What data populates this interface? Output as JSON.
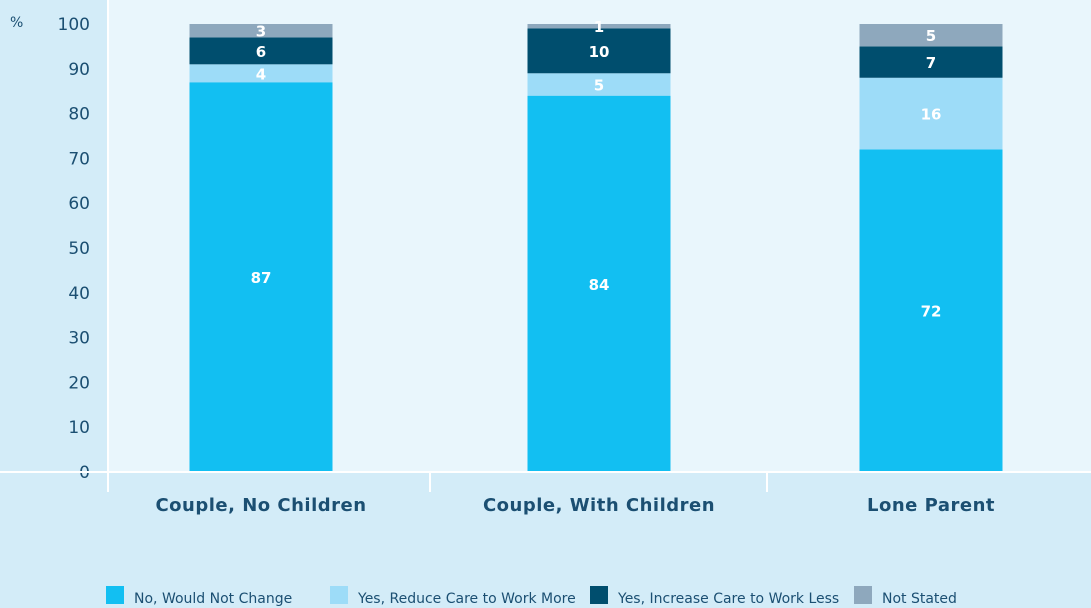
{
  "chart_data": {
    "type": "bar",
    "stacked": true,
    "y_unit": "%",
    "ylim": [
      0,
      100
    ],
    "yticks": [
      0,
      10,
      20,
      30,
      40,
      50,
      60,
      70,
      80,
      90,
      100
    ],
    "categories": [
      "Couple, No Children",
      "Couple, With Children",
      "Lone Parent"
    ],
    "series": [
      {
        "name": "No, Would Not Change",
        "color": "#12bff2",
        "values": [
          87,
          84,
          72
        ]
      },
      {
        "name": "Yes, Reduce Care to Work More",
        "color": "#9ddcf8",
        "values": [
          4,
          5,
          16
        ]
      },
      {
        "name": "Yes, Increase Care to Work Less",
        "color": "#004e6e",
        "values": [
          6,
          10,
          7
        ]
      },
      {
        "name": "Not Stated",
        "color": "#8ea8bd",
        "values": [
          3,
          1,
          5
        ]
      }
    ],
    "grid": false,
    "legend_position": "bottom"
  },
  "colors": {
    "background": "#d3ecf8",
    "plot_area": "#e9f6fc",
    "axis": "#ffffff",
    "text": "#1b4f72"
  }
}
